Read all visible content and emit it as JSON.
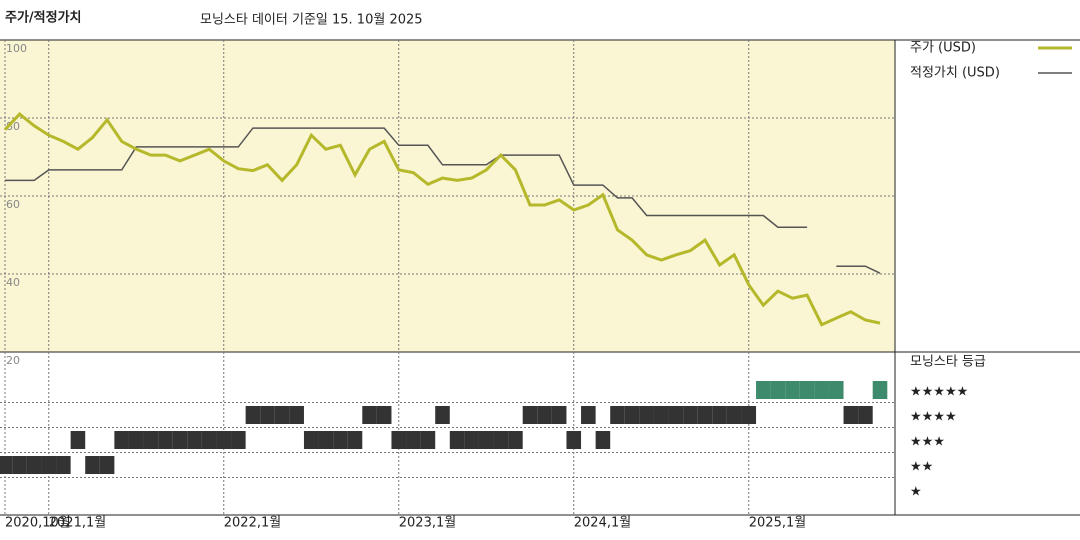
{
  "chart_data": {
    "type": "line",
    "title": "주가/적정가치",
    "subtitle": "모닝스타 데이터 기준일 15. 10월 2025",
    "x": [
      "2020-10",
      "2020-11",
      "2020-12",
      "2021-01",
      "2021-02",
      "2021-03",
      "2021-04",
      "2021-05",
      "2021-06",
      "2021-07",
      "2021-08",
      "2021-09",
      "2021-10",
      "2021-11",
      "2021-12",
      "2022-01",
      "2022-02",
      "2022-03",
      "2022-04",
      "2022-05",
      "2022-06",
      "2022-07",
      "2022-08",
      "2022-09",
      "2022-10",
      "2022-11",
      "2022-12",
      "2023-01",
      "2023-02",
      "2023-03",
      "2023-04",
      "2023-05",
      "2023-06",
      "2023-07",
      "2023-08",
      "2023-09",
      "2023-10",
      "2023-11",
      "2023-12",
      "2024-01",
      "2024-02",
      "2024-03",
      "2024-04",
      "2024-05",
      "2024-06",
      "2024-07",
      "2024-08",
      "2024-09",
      "2024-10",
      "2024-11",
      "2024-12",
      "2025-01",
      "2025-02",
      "2025-03",
      "2025-04",
      "2025-05",
      "2025-06",
      "2025-07",
      "2025-08",
      "2025-09",
      "2025-10"
    ],
    "series": [
      {
        "name": "주가 (USD)",
        "color": "#b5b82a",
        "values": [
          77,
          81,
          78,
          75.6,
          74,
          72,
          75,
          79.5,
          74,
          72,
          70.5,
          70.5,
          69,
          70.5,
          72,
          69,
          67,
          66.5,
          68,
          64,
          68,
          75.6,
          72,
          73,
          65.4,
          72,
          74,
          66.7,
          66,
          63,
          64.6,
          64,
          64.6,
          66.7,
          70.5,
          66.7,
          57.7,
          57.7,
          59,
          56.4,
          57.7,
          60.3,
          51.3,
          48.7,
          44.9,
          43.6,
          44.9,
          46,
          48.7,
          42.3,
          44.9,
          37.2,
          32,
          35.6,
          33.8,
          34.6,
          27,
          28.7,
          30.3,
          28.2,
          27.4
        ]
      },
      {
        "name": "적정가치 (USD)",
        "color": "#555555",
        "values": [
          64,
          64,
          64,
          66.7,
          66.7,
          66.7,
          66.7,
          66.7,
          66.7,
          72.6,
          72.6,
          72.6,
          72.6,
          72.6,
          72.6,
          72.6,
          72.6,
          77.4,
          77.4,
          77.4,
          77.4,
          77.4,
          77.4,
          77.4,
          77.4,
          77.4,
          77.4,
          73,
          73,
          73,
          68,
          68,
          68,
          68,
          70.5,
          70.5,
          70.5,
          70.5,
          70.5,
          62.8,
          62.8,
          62.8,
          59.5,
          59.5,
          55,
          55,
          55,
          55,
          55,
          55,
          55,
          55,
          55,
          52,
          52,
          52,
          null,
          42,
          42,
          42,
          40.2
        ]
      }
    ],
    "xlim": [
      "2020-10",
      "2025-10"
    ],
    "xticks": [
      {
        "value": "2020-10",
        "label": "2020,10월"
      },
      {
        "value": "2021-01",
        "label": "2021,1월"
      },
      {
        "value": "2022-01",
        "label": "2022,1월"
      },
      {
        "value": "2023-01",
        "label": "2023,1월"
      },
      {
        "value": "2024-01",
        "label": "2024,1월"
      },
      {
        "value": "2025-01",
        "label": "2025,1월"
      }
    ],
    "ylim": [
      20,
      100
    ],
    "yticks": [
      20,
      40,
      60,
      80,
      100
    ],
    "grid": true,
    "rating": {
      "title": "모닝스타 등급",
      "labels": [
        "★★★★★",
        "★★★★",
        "★★★",
        "★★",
        "★"
      ],
      "color": "#333333",
      "top_color": "#3d8a6c",
      "values": [
        2,
        2,
        2,
        2,
        2,
        3,
        2,
        2,
        3,
        3,
        3,
        3,
        3,
        3,
        3,
        3,
        3,
        4,
        4,
        4,
        4,
        3,
        3,
        3,
        3,
        4,
        4,
        3,
        3,
        3,
        4,
        3,
        3,
        3,
        3,
        3,
        4,
        4,
        4,
        3,
        4,
        3,
        4,
        4,
        4,
        4,
        4,
        4,
        4,
        4,
        4,
        4,
        5,
        5,
        5,
        5,
        5,
        5,
        4,
        4,
        5
      ]
    }
  }
}
